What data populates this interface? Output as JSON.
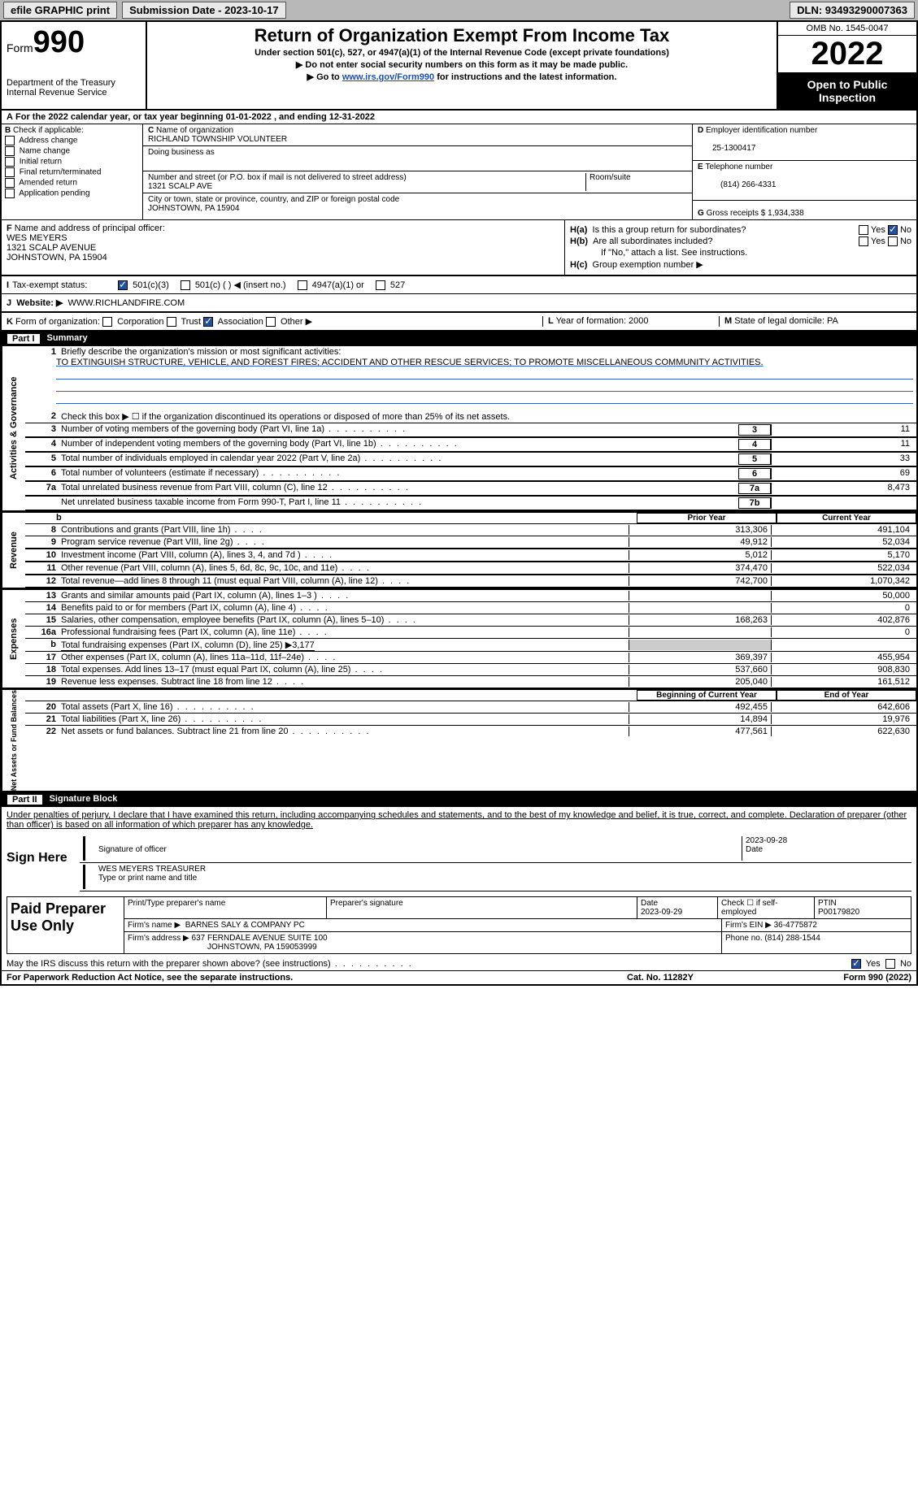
{
  "topbar": {
    "efile": "efile GRAPHIC print",
    "submission": "Submission Date - 2023-10-17",
    "dln": "DLN: 93493290007363"
  },
  "header": {
    "form_label": "Form",
    "form_num": "990",
    "dept": "Department of the Treasury",
    "irs": "Internal Revenue Service",
    "title": "Return of Organization Exempt From Income Tax",
    "sub1": "Under section 501(c), 527, or 4947(a)(1) of the Internal Revenue Code (except private foundations)",
    "sub2": "Do not enter social security numbers on this form as it may be made public.",
    "sub3_pre": "Go to ",
    "sub3_link": "www.irs.gov/Form990",
    "sub3_post": " for instructions and the latest information.",
    "omb": "OMB No. 1545-0047",
    "year": "2022",
    "open": "Open to Public Inspection"
  },
  "periodA": "For the 2022 calendar year, or tax year beginning 01-01-2022    , and ending 12-31-2022",
  "checkB": {
    "label": "Check if applicable:",
    "items": [
      "Address change",
      "Name change",
      "Initial return",
      "Final return/terminated",
      "Amended return",
      "Application pending"
    ]
  },
  "blockC": {
    "name_label": "Name of organization",
    "name": "RICHLAND TOWNSHIP VOLUNTEER",
    "dba_label": "Doing business as",
    "addr_label": "Number and street (or P.O. box if mail is not delivered to street address)",
    "room_label": "Room/suite",
    "addr": "1321 SCALP AVE",
    "city_label": "City or town, state or province, country, and ZIP or foreign postal code",
    "city": "JOHNSTOWN, PA  15904"
  },
  "blockD": {
    "label": "Employer identification number",
    "val": "25-1300417"
  },
  "blockE": {
    "label": "Telephone number",
    "val": "(814) 266-4331"
  },
  "blockG": {
    "label": "Gross receipts $",
    "val": "1,934,338"
  },
  "blockF": {
    "label": "Name and address of principal officer:",
    "name": "WES MEYERS",
    "addr1": "1321 SCALP AVENUE",
    "addr2": "JOHNSTOWN, PA  15904"
  },
  "blockH": {
    "a": "Is this a group return for subordinates?",
    "b": "Are all subordinates included?",
    "note": "If \"No,\" attach a list. See instructions.",
    "c": "Group exemption number ▶",
    "yes": "Yes",
    "no": "No"
  },
  "taxI": {
    "label": "Tax-exempt status:",
    "c3": "501(c)(3)",
    "c": "501(c) (  ) ◀ (insert no.)",
    "a1": "4947(a)(1) or",
    "s527": "527"
  },
  "webJ": {
    "label": "Website: ▶",
    "val": "WWW.RICHLANDFIRE.COM"
  },
  "rowK": {
    "label": "Form of organization:",
    "corp": "Corporation",
    "trust": "Trust",
    "assoc": "Association",
    "other": "Other ▶",
    "L": "Year of formation: 2000",
    "M": "State of legal domicile: PA"
  },
  "part1": {
    "num": "Part I",
    "title": "Summary"
  },
  "gov": {
    "vtab": "Activities & Governance",
    "l1": "Briefly describe the organization's mission or most significant activities:",
    "mission": "TO EXTINGUISH STRUCTURE, VEHICLE, AND FOREST FIRES; ACCIDENT AND OTHER RESCUE SERVICES; TO PROMOTE MISCELLANEOUS COMMUNITY ACTIVITIES.",
    "l2": "Check this box ▶ ☐ if the organization discontinued its operations or disposed of more than 25% of its net assets.",
    "rows": [
      {
        "n": "3",
        "d": "Number of voting members of the governing body (Part VI, line 1a)",
        "b": "3",
        "v": "11"
      },
      {
        "n": "4",
        "d": "Number of independent voting members of the governing body (Part VI, line 1b)",
        "b": "4",
        "v": "11"
      },
      {
        "n": "5",
        "d": "Total number of individuals employed in calendar year 2022 (Part V, line 2a)",
        "b": "5",
        "v": "33"
      },
      {
        "n": "6",
        "d": "Total number of volunteers (estimate if necessary)",
        "b": "6",
        "v": "69"
      },
      {
        "n": "7a",
        "d": "Total unrelated business revenue from Part VIII, column (C), line 12",
        "b": "7a",
        "v": "8,473"
      },
      {
        "n": "",
        "d": "Net unrelated business taxable income from Form 990-T, Part I, line 11",
        "b": "7b",
        "v": ""
      }
    ]
  },
  "cols": {
    "prior": "Prior Year",
    "curr": "Current Year"
  },
  "rev": {
    "vtab": "Revenue",
    "rows": [
      {
        "n": "8",
        "d": "Contributions and grants (Part VIII, line 1h)",
        "v1": "313,306",
        "v2": "491,104"
      },
      {
        "n": "9",
        "d": "Program service revenue (Part VIII, line 2g)",
        "v1": "49,912",
        "v2": "52,034"
      },
      {
        "n": "10",
        "d": "Investment income (Part VIII, column (A), lines 3, 4, and 7d )",
        "v1": "5,012",
        "v2": "5,170"
      },
      {
        "n": "11",
        "d": "Other revenue (Part VIII, column (A), lines 5, 6d, 8c, 9c, 10c, and 11e)",
        "v1": "374,470",
        "v2": "522,034"
      },
      {
        "n": "12",
        "d": "Total revenue—add lines 8 through 11 (must equal Part VIII, column (A), line 12)",
        "v1": "742,700",
        "v2": "1,070,342"
      }
    ]
  },
  "exp": {
    "vtab": "Expenses",
    "rows": [
      {
        "n": "13",
        "d": "Grants and similar amounts paid (Part IX, column (A), lines 1–3 )",
        "v1": "",
        "v2": "50,000"
      },
      {
        "n": "14",
        "d": "Benefits paid to or for members (Part IX, column (A), line 4)",
        "v1": "",
        "v2": "0"
      },
      {
        "n": "15",
        "d": "Salaries, other compensation, employee benefits (Part IX, column (A), lines 5–10)",
        "v1": "168,263",
        "v2": "402,876"
      },
      {
        "n": "16a",
        "d": "Professional fundraising fees (Part IX, column (A), line 11e)",
        "v1": "",
        "v2": "0"
      },
      {
        "n": "b",
        "d": "Total fundraising expenses (Part IX, column (D), line 25) ▶3,177",
        "v1": "",
        "v2": "",
        "shade": true
      },
      {
        "n": "17",
        "d": "Other expenses (Part IX, column (A), lines 11a–11d, 11f–24e)",
        "v1": "369,397",
        "v2": "455,954"
      },
      {
        "n": "18",
        "d": "Total expenses. Add lines 13–17 (must equal Part IX, column (A), line 25)",
        "v1": "537,660",
        "v2": "908,830"
      },
      {
        "n": "19",
        "d": "Revenue less expenses. Subtract line 18 from line 12",
        "v1": "205,040",
        "v2": "161,512"
      }
    ]
  },
  "net": {
    "vtab": "Net Assets or Fund Balances",
    "h1": "Beginning of Current Year",
    "h2": "End of Year",
    "rows": [
      {
        "n": "20",
        "d": "Total assets (Part X, line 16)",
        "v1": "492,455",
        "v2": "642,606"
      },
      {
        "n": "21",
        "d": "Total liabilities (Part X, line 26)",
        "v1": "14,894",
        "v2": "19,976"
      },
      {
        "n": "22",
        "d": "Net assets or fund balances. Subtract line 21 from line 20",
        "v1": "477,561",
        "v2": "622,630"
      }
    ]
  },
  "part2": {
    "num": "Part II",
    "title": "Signature Block"
  },
  "sig": {
    "decl": "Under penalties of perjury, I declare that I have examined this return, including accompanying schedules and statements, and to the best of my knowledge and belief, it is true, correct, and complete. Declaration of preparer (other than officer) is based on all information of which preparer has any knowledge.",
    "here": "Sign Here",
    "officer_sig": "Signature of officer",
    "date": "Date",
    "date_val": "2023-09-28",
    "typed": "WES MEYERS  TREASURER",
    "typed_label": "Type or print name and title"
  },
  "prep": {
    "label": "Paid Preparer Use Only",
    "r1": {
      "c1": "Print/Type preparer's name",
      "c2": "Preparer's signature",
      "c3": "Date",
      "c3v": "2023-09-29",
      "c4": "Check ☐ if self-employed",
      "c5": "PTIN",
      "c5v": "P00179820"
    },
    "r2": {
      "label": "Firm's name    ▶",
      "val": "BARNES SALY & COMPANY PC",
      "ein": "Firm's EIN ▶ 36-4775872"
    },
    "r3": {
      "label": "Firm's address ▶",
      "val1": "637 FERNDALE AVENUE SUITE 100",
      "val2": "JOHNSTOWN, PA  159053999",
      "phone": "Phone no. (814) 288-1544"
    }
  },
  "bottom": {
    "q": "May the IRS discuss this return with the preparer shown above? (see instructions)",
    "yes": "Yes",
    "no": "No"
  },
  "footer": {
    "l": "For Paperwork Reduction Act Notice, see the separate instructions.",
    "m": "Cat. No. 11282Y",
    "r": "Form 990 (2022)"
  }
}
